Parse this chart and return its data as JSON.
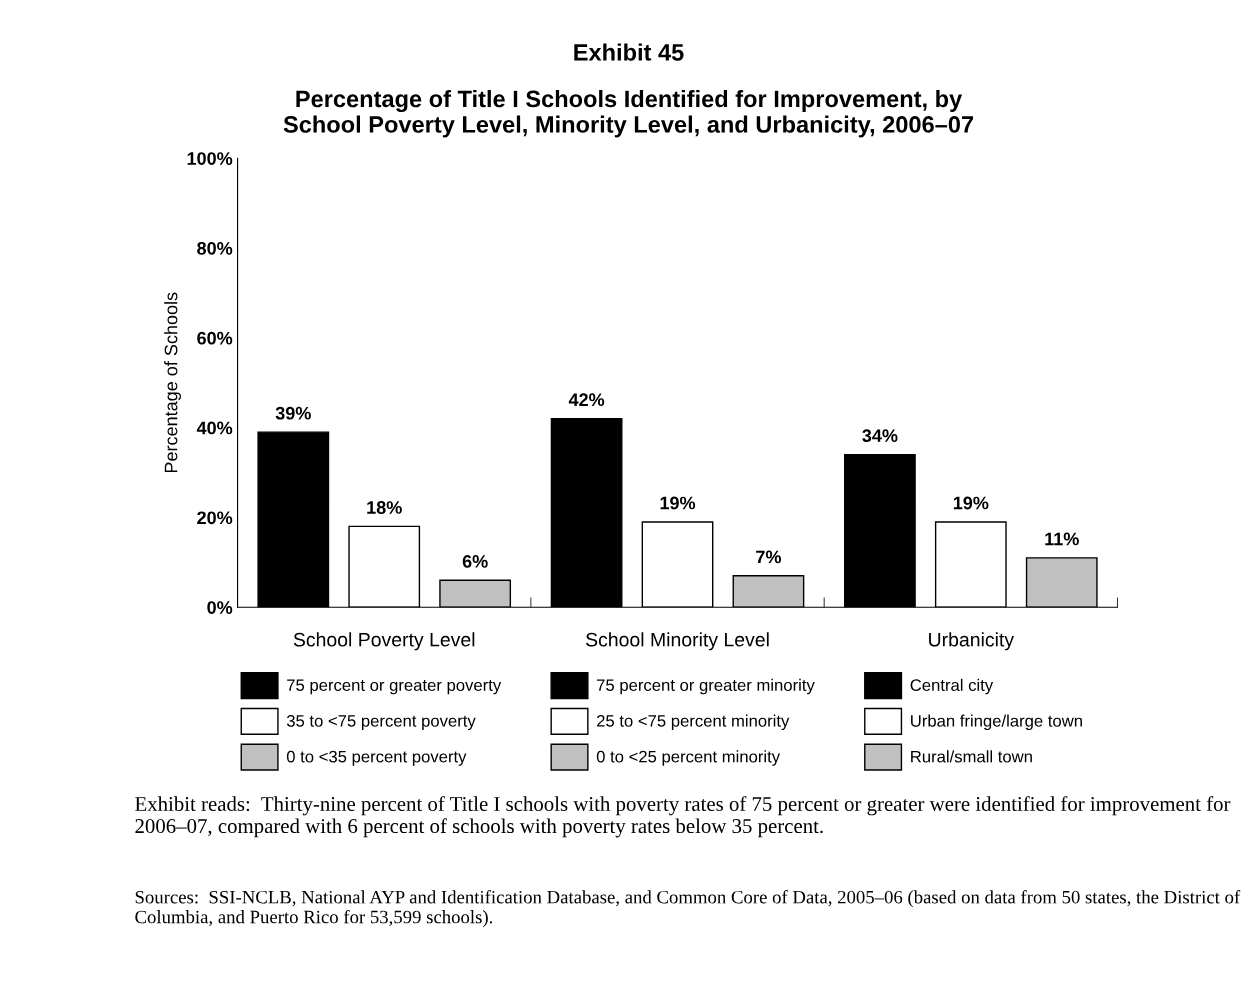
{
  "chart_data": {
    "type": "bar",
    "title": "Exhibit 45",
    "subtitle": "Percentage of Title I Schools Identified for Improvement, by\nSchool Poverty Level, Minority Level, and Urbanicity, 2006–07",
    "ylabel": "Percentage of Schools",
    "categories": [
      "School Poverty Level",
      "School Minority Level",
      "Urbanicity"
    ],
    "series": [
      {
        "name": "75 percent or greater poverty",
        "color": "#000000",
        "values": [
          39,
          null,
          null
        ],
        "value_labels": [
          "39%",
          null,
          null
        ]
      },
      {
        "name": "35 to <75 percent poverty",
        "color": "#ffffff",
        "values": [
          18,
          null,
          null
        ],
        "value_labels": [
          "18%",
          null,
          null
        ]
      },
      {
        "name": "0 to <35 percent poverty",
        "color": "#c0c0c0",
        "values": [
          6,
          null,
          null
        ],
        "value_labels": [
          "6%",
          null,
          null
        ]
      },
      {
        "name": "75 percent or greater minority",
        "color": "#000000",
        "values": [
          null,
          42,
          null
        ],
        "value_labels": [
          null,
          "42%",
          null
        ]
      },
      {
        "name": "25 to <75 percent minority",
        "color": "#ffffff",
        "values": [
          null,
          19,
          null
        ],
        "value_labels": [
          null,
          "19%",
          null
        ]
      },
      {
        "name": "0 to <25 percent minority",
        "color": "#c0c0c0",
        "values": [
          null,
          7,
          null
        ],
        "value_labels": [
          null,
          "7%",
          null
        ]
      },
      {
        "name": "Central city",
        "color": "#000000",
        "values": [
          null,
          null,
          34
        ],
        "value_labels": [
          null,
          null,
          "34%"
        ]
      },
      {
        "name": "Urban fringe/large town",
        "color": "#ffffff",
        "values": [
          null,
          null,
          19
        ],
        "value_labels": [
          null,
          null,
          "19%"
        ]
      },
      {
        "name": "Rural/small town",
        "color": "#c0c0c0",
        "values": [
          null,
          null,
          11
        ],
        "value_labels": [
          null,
          null,
          "11%"
        ]
      }
    ],
    "ylim": [
      0,
      100
    ],
    "yticks": [
      {
        "value": 0,
        "label": "0%"
      },
      {
        "value": 20,
        "label": "20%"
      },
      {
        "value": 40,
        "label": "40%"
      },
      {
        "value": 60,
        "label": "60%"
      },
      {
        "value": 80,
        "label": "80%"
      },
      {
        "value": 100,
        "label": "100%"
      }
    ],
    "grid": false,
    "legend": "bottom",
    "annotations": [
      "Exhibit reads:  Thirty-nine percent of Title I schools with poverty rates of 75 percent or greater were identified for improvement for 2006–07, compared with 6 percent of schools with poverty rates below 35 percent.",
      "Sources:  SSI-NCLB, National AYP and Identification Database, and Common Core of Data, 2005–06 (based on data from 50 states, the District of Columbia, and Puerto Rico for 53,599 schools)."
    ]
  }
}
